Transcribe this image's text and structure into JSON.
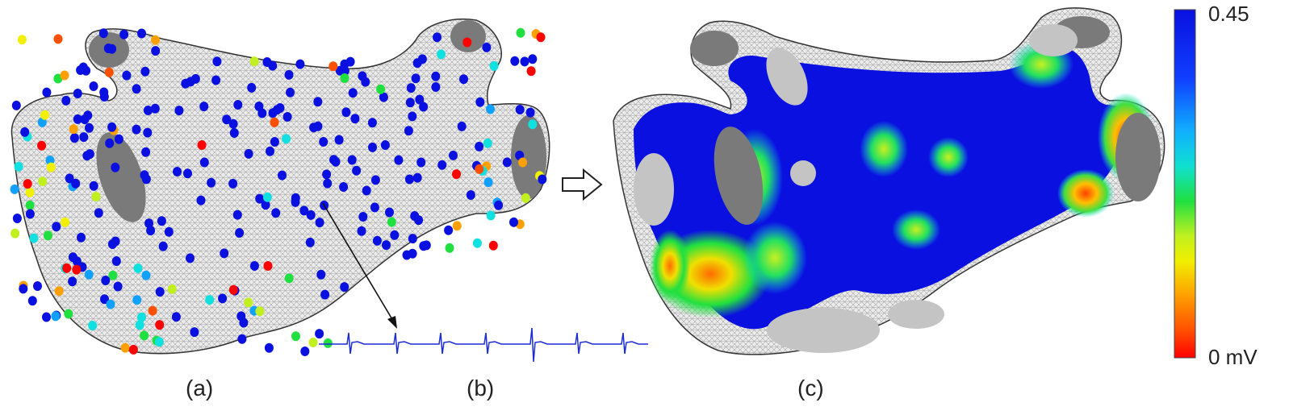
{
  "panels": [
    {
      "label": "(a)"
    },
    {
      "label": "(b)"
    },
    {
      "label": "(c)"
    }
  ],
  "colorbar": {
    "max_label": "0.45",
    "min_label": "0 mV",
    "max_value": 0.45,
    "min_value": 0,
    "colors": [
      "#0a10e0",
      "#1040ff",
      "#10a0ff",
      "#10e0e0",
      "#20e040",
      "#c0f020",
      "#f0f000",
      "#ffa000",
      "#ff5000",
      "#ff0000"
    ]
  },
  "colors": {
    "mesh": "#e8e8e8",
    "mesh_line": "#9a9a9a",
    "vein_opening": "#7a7a7a",
    "healthy": "#0a10e0",
    "signal": "#1a2ad8",
    "arrow": "#111111"
  },
  "icons": {
    "transform_arrow": "hollow-right-arrow-icon",
    "pointer_arrow": "black-arrow-icon"
  }
}
